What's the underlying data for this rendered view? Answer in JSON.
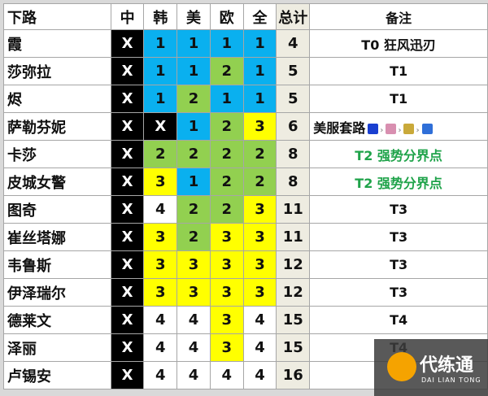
{
  "headers": [
    "下路",
    "中",
    "韩",
    "美",
    "欧",
    "全",
    "总计",
    "备注"
  ],
  "colors": {
    "blue": "#0ab0ef",
    "green": "#92d050",
    "yellow": "#ffff00",
    "black": "#000000",
    "total_bg": "#eeece1",
    "note_green": "#1fa34a"
  },
  "rows": [
    {
      "name": "霞",
      "cells": [
        "X",
        "1",
        "1",
        "1",
        "1"
      ],
      "fills": [
        "k",
        "b",
        "b",
        "b",
        "b"
      ],
      "total": "4",
      "note": "T0 狂风迅刃"
    },
    {
      "name": "莎弥拉",
      "cells": [
        "X",
        "1",
        "1",
        "2",
        "1"
      ],
      "fills": [
        "k",
        "b",
        "b",
        "g",
        "b"
      ],
      "total": "5",
      "note": "T1"
    },
    {
      "name": "烬",
      "cells": [
        "X",
        "1",
        "2",
        "1",
        "1"
      ],
      "fills": [
        "k",
        "b",
        "g",
        "b",
        "b"
      ],
      "total": "5",
      "note": "T1"
    },
    {
      "name": "萨勒芬妮",
      "cells": [
        "X",
        "X",
        "1",
        "2",
        "3"
      ],
      "fills": [
        "k",
        "k",
        "b",
        "g",
        "y"
      ],
      "total": "6",
      "note": "美服套路",
      "note_icons": [
        "item-icon-blue-gem",
        "item-icon-pink-orb",
        "item-icon-gold-item",
        "item-icon-lightning"
      ]
    },
    {
      "name": "卡莎",
      "cells": [
        "X",
        "2",
        "2",
        "2",
        "2"
      ],
      "fills": [
        "k",
        "g",
        "g",
        "g",
        "g"
      ],
      "total": "8",
      "note": "T2 强势分界点",
      "note_green": true
    },
    {
      "name": "皮城女警",
      "cells": [
        "X",
        "3",
        "1",
        "2",
        "2"
      ],
      "fills": [
        "k",
        "y",
        "b",
        "g",
        "g"
      ],
      "total": "8",
      "note": "T2 强势分界点",
      "note_green": true
    },
    {
      "name": "图奇",
      "cells": [
        "X",
        "4",
        "2",
        "2",
        "3"
      ],
      "fills": [
        "k",
        "w",
        "g",
        "g",
        "y"
      ],
      "total": "11",
      "note": "T3"
    },
    {
      "name": "崔丝塔娜",
      "cells": [
        "X",
        "3",
        "2",
        "3",
        "3"
      ],
      "fills": [
        "k",
        "y",
        "g",
        "y",
        "y"
      ],
      "total": "11",
      "note": "T3"
    },
    {
      "name": "韦鲁斯",
      "cells": [
        "X",
        "3",
        "3",
        "3",
        "3"
      ],
      "fills": [
        "k",
        "y",
        "y",
        "y",
        "y"
      ],
      "total": "12",
      "note": "T3"
    },
    {
      "name": "伊泽瑞尔",
      "cells": [
        "X",
        "3",
        "3",
        "3",
        "3"
      ],
      "fills": [
        "k",
        "y",
        "y",
        "y",
        "y"
      ],
      "total": "12",
      "note": "T3"
    },
    {
      "name": "德莱文",
      "cells": [
        "X",
        "4",
        "4",
        "3",
        "4"
      ],
      "fills": [
        "k",
        "w",
        "w",
        "y",
        "w"
      ],
      "total": "15",
      "note": "T4"
    },
    {
      "name": "泽丽",
      "cells": [
        "X",
        "4",
        "4",
        "3",
        "4"
      ],
      "fills": [
        "k",
        "w",
        "w",
        "y",
        "w"
      ],
      "total": "15",
      "note": "T4"
    },
    {
      "name": "卢锡安",
      "cells": [
        "X",
        "4",
        "4",
        "4",
        "4"
      ],
      "fills": [
        "k",
        "w",
        "w",
        "w",
        "w"
      ],
      "total": "16",
      "note": ""
    }
  ],
  "watermark": {
    "title": "代练通",
    "subtitle": "DAI LIAN TONG"
  }
}
